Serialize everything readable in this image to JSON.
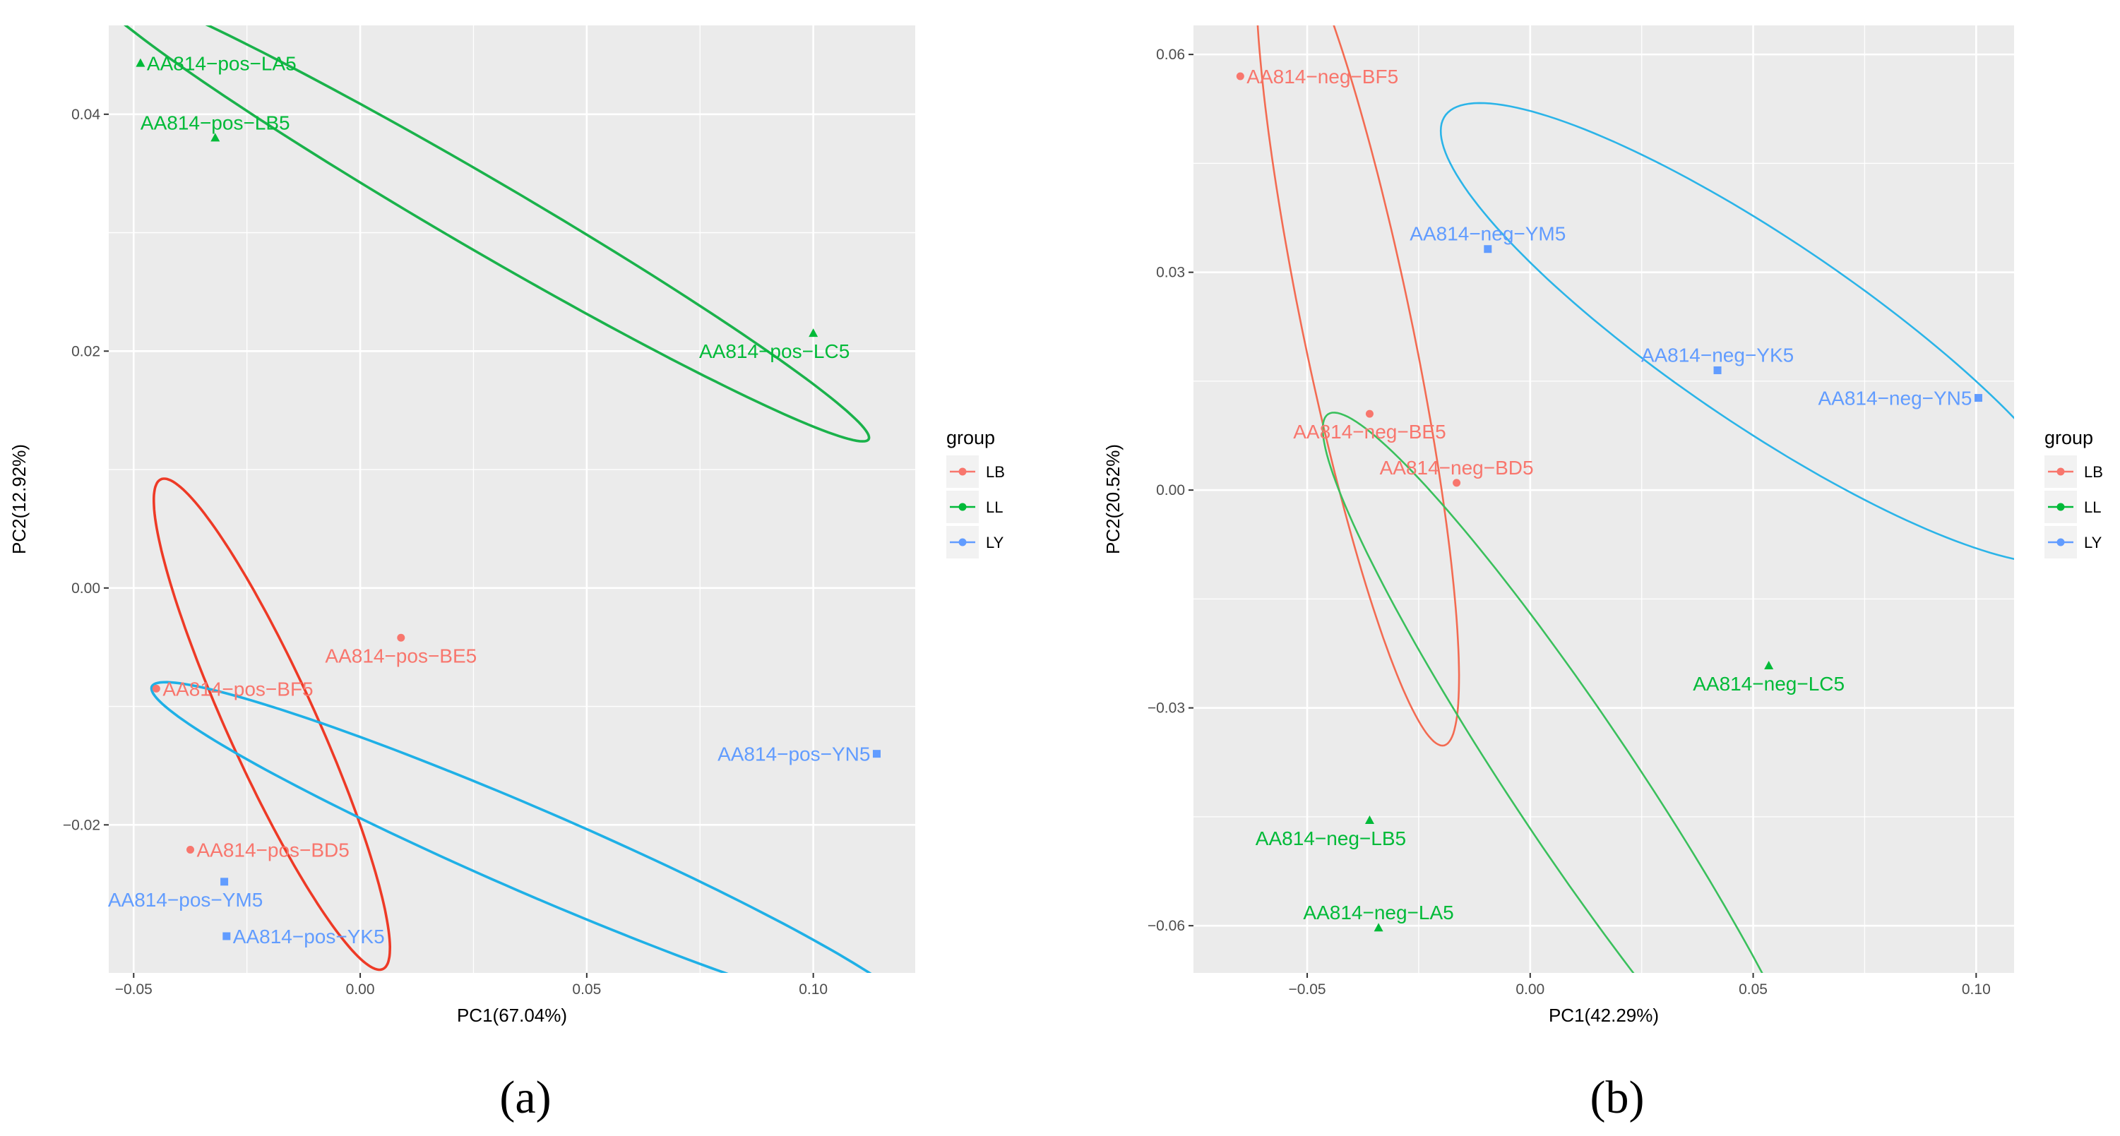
{
  "figure": {
    "panel_labels": [
      "(a)",
      "(b)"
    ],
    "colors": {
      "panel_bg": "#ebebeb",
      "grid": "#ffffff",
      "LB": "#f8766d",
      "LL": "#00ba38",
      "LY": "#619cff",
      "LB_ellipse_a": "#ee3a26",
      "LL_ellipse_a": "#1ab24b",
      "LY_ellipse_a": "#1fb0e6",
      "LB_ellipse_b": "#f36b52",
      "LL_ellipse_b": "#3ac05c",
      "LY_ellipse_b": "#2bb4e8"
    }
  },
  "chart_data": [
    {
      "type": "scatter",
      "panel": "(a)",
      "xlabel": "PC1(67.04%)",
      "ylabel": "PC2(12.92%)",
      "xlim": [
        -0.0555,
        0.1225
      ],
      "ylim": [
        -0.0325,
        0.0475
      ],
      "xticks": [
        -0.05,
        0.0,
        0.05,
        0.1
      ],
      "xtick_labels": [
        "−0.05",
        "0.00",
        "0.05",
        "0.10"
      ],
      "yticks": [
        -0.02,
        0.0,
        0.02,
        0.04
      ],
      "ytick_labels": [
        "−0.02",
        "0.00",
        "0.02",
        "0.04"
      ],
      "legend": {
        "title": "group",
        "entries": [
          "LB",
          "LL",
          "LY"
        ],
        "placement": "right"
      },
      "series": [
        {
          "name": "LB",
          "marker": "circle",
          "points": [
            {
              "x": 0.009,
              "y": -0.0042,
              "label": "AA814−pos−BE5",
              "anchor": "middle",
              "dx": 0,
              "dy": 1
            },
            {
              "x": -0.045,
              "y": -0.0085,
              "label": "AA814−pos−BF5",
              "anchor": "start",
              "dx": 1,
              "dy": 0
            },
            {
              "x": -0.0375,
              "y": -0.0221,
              "label": "AA814−pos−BD5",
              "anchor": "start",
              "dx": 1,
              "dy": 0
            }
          ]
        },
        {
          "name": "LL",
          "marker": "triangle",
          "points": [
            {
              "x": -0.0485,
              "y": 0.0443,
              "label": "AA814−pos−LA5",
              "anchor": "start",
              "dx": 1,
              "dy": 0
            },
            {
              "x": -0.032,
              "y": 0.038,
              "label": "AA814−pos−LB5",
              "anchor": "middle",
              "dx": 0,
              "dy": -1
            },
            {
              "x": 0.1,
              "y": 0.0215,
              "label": "AA814−pos−LC5",
              "anchor": "middle",
              "dx": -1,
              "dy": 1
            }
          ]
        },
        {
          "name": "LY",
          "marker": "square",
          "points": [
            {
              "x": 0.114,
              "y": -0.014,
              "label": "AA814−pos−YN5",
              "anchor": "end",
              "dx": -1,
              "dy": 0
            },
            {
              "x": -0.03,
              "y": -0.0248,
              "label": "AA814−pos−YM5",
              "anchor": "middle",
              "dx": -1,
              "dy": 1
            },
            {
              "x": -0.0295,
              "y": -0.0294,
              "label": "AA814−pos−YK5",
              "anchor": "start",
              "dx": 1,
              "dy": 0
            }
          ]
        }
      ],
      "ellipses": [
        {
          "group": "LL",
          "cx": 0.026,
          "cy": 0.0318,
          "rx": 0.0884,
          "ry": 0.0034,
          "angle": -12.5,
          "stroke": "LL_ellipse_a",
          "width": 3.6
        },
        {
          "group": "LB",
          "cx": -0.0195,
          "cy": -0.0115,
          "rx": 0.0326,
          "ry": 0.0068,
          "angle": -37.9,
          "stroke": "LB_ellipse_a",
          "width": 3.6
        },
        {
          "group": "LY",
          "cx": 0.0385,
          "cy": -0.0223,
          "rx": 0.0857,
          "ry": 0.0038,
          "angle": -9.3,
          "stroke": "LY_ellipse_a",
          "width": 3.6
        }
      ]
    },
    {
      "type": "scatter",
      "panel": "(b)",
      "xlabel": "PC1(42.29%)",
      "ylabel": "PC2(20.52%)",
      "xlim": [
        -0.0755,
        0.1085
      ],
      "ylim": [
        -0.0665,
        0.064
      ],
      "xticks": [
        -0.05,
        0.0,
        0.05,
        0.1
      ],
      "xtick_labels": [
        "−0.05",
        "0.00",
        "0.05",
        "0.10"
      ],
      "yticks": [
        -0.06,
        -0.03,
        0.0,
        0.03,
        0.06
      ],
      "ytick_labels": [
        "−0.06",
        "−0.03",
        "0.00",
        "0.03",
        "0.06"
      ],
      "legend": {
        "title": "group",
        "entries": [
          "LB",
          "LL",
          "LY"
        ],
        "placement": "right"
      },
      "series": [
        {
          "name": "LB",
          "marker": "circle",
          "points": [
            {
              "x": -0.065,
              "y": 0.057,
              "label": "AA814−neg−BF5",
              "anchor": "start",
              "dx": 1,
              "dy": 0
            },
            {
              "x": -0.036,
              "y": 0.0105,
              "label": "AA814−neg−BE5",
              "anchor": "middle",
              "dx": 0,
              "dy": 1
            },
            {
              "x": -0.0165,
              "y": 0.001,
              "label": "AA814−neg−BD5",
              "anchor": "middle",
              "dx": 0,
              "dy": -1
            }
          ]
        },
        {
          "name": "LL",
          "marker": "triangle",
          "points": [
            {
              "x": 0.0535,
              "y": -0.0242,
              "label": "AA814−neg−LC5",
              "anchor": "middle",
              "dx": 0,
              "dy": 1
            },
            {
              "x": -0.036,
              "y": -0.0455,
              "label": "AA814−neg−LB5",
              "anchor": "middle",
              "dx": -1,
              "dy": 1
            },
            {
              "x": -0.034,
              "y": -0.0603,
              "label": "AA814−neg−LA5",
              "anchor": "middle",
              "dx": 0,
              "dy": -1
            }
          ]
        },
        {
          "name": "LY",
          "marker": "square",
          "points": [
            {
              "x": -0.0095,
              "y": 0.0332,
              "label": "AA814−neg−YM5",
              "anchor": "middle",
              "dx": 0,
              "dy": -1
            },
            {
              "x": 0.042,
              "y": 0.0165,
              "label": "AA814−neg−YK5",
              "anchor": "middle",
              "dx": 0,
              "dy": -1
            },
            {
              "x": 0.1005,
              "y": 0.0127,
              "label": "AA814−neg−YN5",
              "anchor": "end",
              "dx": -1,
              "dy": 0
            }
          ]
        }
      ],
      "ellipses": [
        {
          "group": "LB",
          "cx": -0.0387,
          "cy": 0.0222,
          "rx": 0.0606,
          "ry": 0.0118,
          "angle": -70.9,
          "stroke": "LB_ellipse_b",
          "width": 2.6
        },
        {
          "group": "LY",
          "cx": 0.0527,
          "cy": 0.0216,
          "rx": 0.0781,
          "ry": 0.0141,
          "angle": -21.7,
          "stroke": "LY_ellipse_b",
          "width": 2.6
        },
        {
          "group": "LL",
          "cx": 0.0104,
          "cy": -0.0408,
          "rx": 0.0759,
          "ry": 0.0113,
          "angle": -42.0,
          "stroke": "LL_ellipse_b",
          "width": 2.6
        }
      ]
    }
  ]
}
